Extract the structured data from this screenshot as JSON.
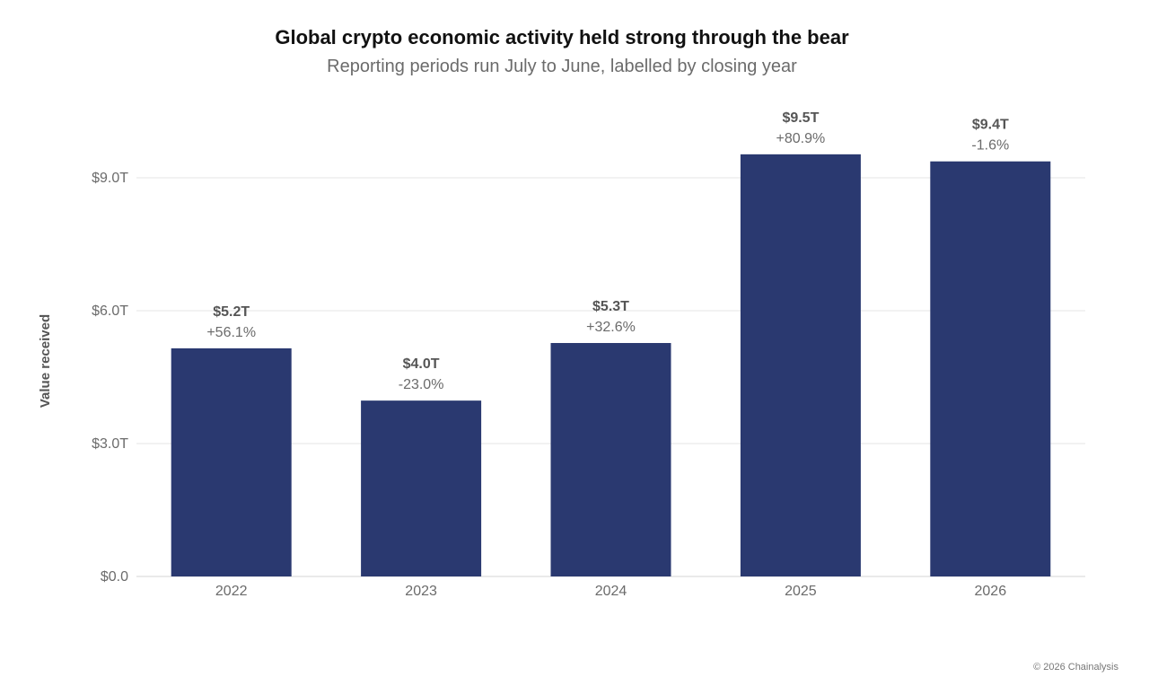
{
  "chart_data": {
    "type": "bar",
    "title": "Global crypto economic activity held strong through the bear",
    "subtitle": "Reporting periods run July to June, labelled by closing year",
    "ylabel": "Value received",
    "xlabel": "",
    "categories": [
      "2022",
      "2023",
      "2024",
      "2025",
      "2026"
    ],
    "values": [
      5.15,
      3.97,
      5.27,
      9.53,
      9.37
    ],
    "value_labels": [
      "$5.2T",
      "$4.0T",
      "$5.3T",
      "$9.5T",
      "$9.4T"
    ],
    "change_labels": [
      "+56.1%",
      "-23.0%",
      "+32.6%",
      "+80.9%",
      "-1.6%"
    ],
    "ylim": [
      0,
      9.0
    ],
    "yticks": [
      0,
      3,
      6,
      9
    ],
    "ytick_labels": [
      "$0.0",
      "$3.0T",
      "$6.0T",
      "$9.0T"
    ],
    "grid": true,
    "bar_color": "#2a3970"
  },
  "footer": {
    "credit": "© 2026 Chainalysis"
  }
}
